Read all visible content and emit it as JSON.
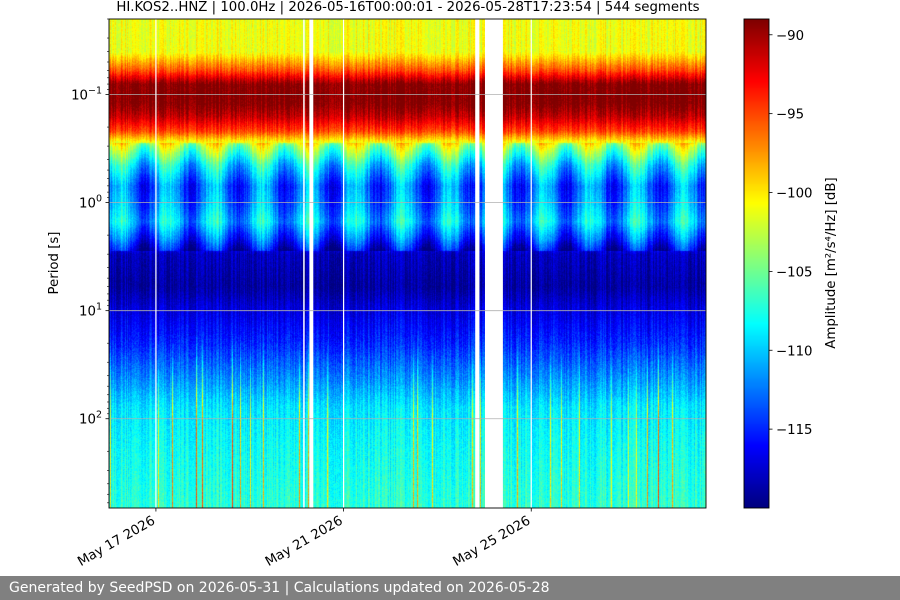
{
  "chart_data": {
    "type": "heatmap",
    "title": "HI.KOS2..HNZ | 100.0Hz | 2026-05-16T00:00:01 - 2026-05-28T17:23:54 | 544 segments",
    "ylabel": "Period [s]",
    "y_scale": "log",
    "y_inverted": true,
    "ylim": [
      0.02,
      670
    ],
    "y_ticks": [
      {
        "value": 0.1,
        "base": "10",
        "exp": "−1"
      },
      {
        "value": 1,
        "base": "10",
        "exp": "0"
      },
      {
        "value": 10,
        "base": "10",
        "exp": "1"
      },
      {
        "value": 100,
        "base": "10",
        "exp": "2"
      }
    ],
    "x_start": "2026-05-16",
    "x_end": "2026-05-28T17:23:54",
    "x_ticks": [
      {
        "date": "2026-05-17",
        "label": "May 17 2026"
      },
      {
        "date": "2026-05-21",
        "label": "May 21 2026"
      },
      {
        "date": "2026-05-25",
        "label": "May 25 2026"
      }
    ],
    "grid": true,
    "colormap": "jet",
    "colorbar": {
      "label": "Amplitude [m²/s⁴/Hz] [dB]",
      "range": [
        -120,
        -89
      ],
      "ticks": [
        -90,
        -95,
        -100,
        -105,
        -110,
        -115
      ],
      "tick_labels": [
        "−90",
        "−95",
        "−100",
        "−105",
        "−110",
        "−115"
      ]
    },
    "data_gaps": [
      {
        "start": "2026-05-20T03:20",
        "end": "2026-05-20T04:00"
      },
      {
        "start": "2026-05-20T06:30",
        "end": "2026-05-20T08:30"
      },
      {
        "start": "2026-05-23T19:20",
        "end": "2026-05-23T21:30"
      },
      {
        "start": "2026-05-24T00:20",
        "end": "2026-05-24T09:30"
      }
    ],
    "psd_profile_db": [
      {
        "period": 0.02,
        "value": -101
      },
      {
        "period": 0.04,
        "value": -101
      },
      {
        "period": 0.06,
        "value": -95
      },
      {
        "period": 0.08,
        "value": -89
      },
      {
        "period": 0.12,
        "value": -89
      },
      {
        "period": 0.16,
        "value": -91
      },
      {
        "period": 0.22,
        "value": -95
      },
      {
        "period": 0.3,
        "value": -103
      },
      {
        "period": 0.45,
        "value": -109
      },
      {
        "period": 0.7,
        "value": -113
      },
      {
        "period": 1.0,
        "value": -112
      },
      {
        "period": 1.5,
        "value": -110
      },
      {
        "period": 2.2,
        "value": -114
      },
      {
        "period": 3.0,
        "value": -118
      },
      {
        "period": 6.0,
        "value": -119
      },
      {
        "period": 10,
        "value": -117
      },
      {
        "period": 20,
        "value": -115
      },
      {
        "period": 40,
        "value": -112
      },
      {
        "period": 80,
        "value": -109
      },
      {
        "period": 200,
        "value": -108
      },
      {
        "period": 670,
        "value": -107
      }
    ]
  },
  "footer": {
    "text": "Generated by SeedPSD on 2026-05-31 | Calculations updated on 2026-05-28"
  }
}
